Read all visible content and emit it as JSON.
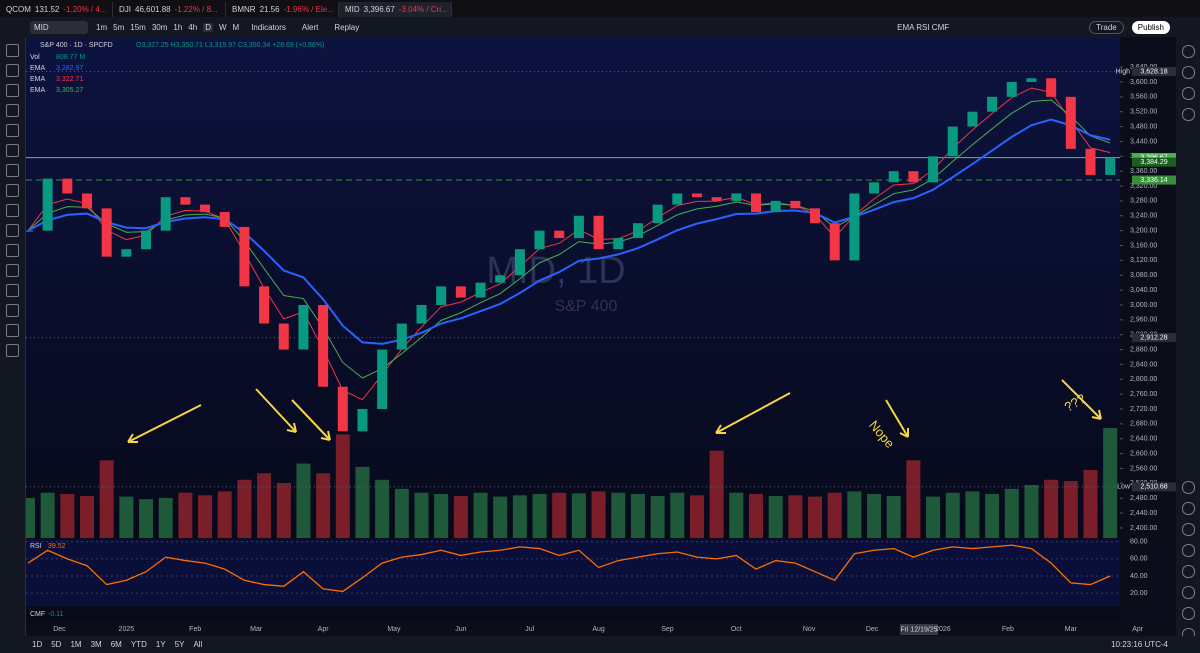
{
  "tabs": [
    {
      "symbol": "QCOM",
      "price": "131.52",
      "change": "-1.20% / 4..."
    },
    {
      "symbol": "DJI",
      "price": "46,601.88",
      "change": "-1.22% / 8..."
    },
    {
      "symbol": "BMNR",
      "price": "21.56",
      "change": "-1.96% / Ele..."
    },
    {
      "symbol": "MID",
      "price": "3,396.67",
      "change": "-3.04% / Cri..."
    }
  ],
  "toolbar": {
    "symbol": "MID",
    "intervals": [
      "1m",
      "5m",
      "15m",
      "30m",
      "1h",
      "4h",
      "D",
      "W",
      "M"
    ],
    "indicators": "Indicators",
    "alert": "Alert",
    "replay": "Replay",
    "layout": "EMA RSI CMF",
    "trade": "Trade",
    "publish": "Publish",
    "currency": "USD"
  },
  "legend": {
    "title": "S&P 400 · 1D · SPCFD",
    "ohlc": "O3,327.25 H3,350.71 L3,315.97 C3,350.34 +28.69 (+0.86%)",
    "vol_name": "Vol",
    "vol_value": "808.77 M",
    "emas": [
      {
        "name": "EMA",
        "value": "3,282.97"
      },
      {
        "name": "EMA",
        "value": "3,322.71"
      },
      {
        "name": "EMA",
        "value": "3,305.27"
      }
    ]
  },
  "watermark": {
    "title": "MID, 1D",
    "subtitle": "S&P 400"
  },
  "annotations": [
    "Nope",
    "???"
  ],
  "price_chart": {
    "x": [
      0,
      1,
      2,
      3,
      4,
      5,
      6,
      7,
      8,
      9,
      10,
      11,
      12,
      13,
      14,
      15,
      16,
      17,
      18,
      19,
      20,
      21,
      22,
      23,
      24,
      25,
      26,
      27,
      28,
      29,
      30,
      31,
      32,
      33,
      34,
      35,
      36,
      37,
      38,
      39,
      40,
      41,
      42,
      43,
      44,
      45,
      46,
      47,
      48,
      49,
      50,
      51,
      52,
      53,
      54,
      55
    ],
    "closes": [
      3200,
      3340,
      3300,
      3260,
      3130,
      3150,
      3200,
      3290,
      3270,
      3250,
      3210,
      3050,
      2950,
      2880,
      3000,
      2780,
      2660,
      2720,
      2880,
      2950,
      3000,
      3050,
      3020,
      3060,
      3080,
      3150,
      3200,
      3180,
      3240,
      3150,
      3180,
      3220,
      3270,
      3300,
      3290,
      3280,
      3300,
      3250,
      3280,
      3260,
      3220,
      3120,
      3300,
      3330,
      3360,
      3330,
      3400,
      3480,
      3520,
      3560,
      3600,
      3610,
      3560,
      3420,
      3350,
      3396.67
    ],
    "volumes": [
      620,
      700,
      680,
      650,
      1200,
      640,
      600,
      620,
      700,
      660,
      720,
      900,
      1000,
      850,
      1150,
      1000,
      1600,
      1100,
      900,
      760,
      700,
      680,
      650,
      700,
      640,
      660,
      680,
      700,
      690,
      720,
      700,
      680,
      650,
      700,
      660,
      1350,
      700,
      680,
      650,
      660,
      640,
      700,
      720,
      680,
      650,
      1200,
      640,
      700,
      720,
      680,
      760,
      820,
      900,
      880,
      1050,
      1700
    ],
    "xlim": [
      -0.1,
      55.5
    ],
    "xticks": [
      {
        "value": 1.6,
        "label": "Dec"
      },
      {
        "value": 5,
        "label": "2025"
      },
      {
        "value": 8.5,
        "label": "Feb"
      },
      {
        "value": 11.6,
        "label": "Mar"
      },
      {
        "value": 15,
        "label": "Apr"
      },
      {
        "value": 18.6,
        "label": "May"
      },
      {
        "value": 22,
        "label": "Jun"
      },
      {
        "value": 25.5,
        "label": "Jul"
      },
      {
        "value": 29,
        "label": "Aug"
      },
      {
        "value": 32.5,
        "label": "Sep"
      },
      {
        "value": 36,
        "label": "Oct"
      },
      {
        "value": 39.7,
        "label": "Nov"
      },
      {
        "value": 42.9,
        "label": "Dec"
      },
      {
        "value": 46.5,
        "label": "2026"
      },
      {
        "value": 49.8,
        "label": "Feb"
      },
      {
        "value": 53,
        "label": "Mar"
      },
      {
        "value": 56.4,
        "label": "Apr"
      }
    ],
    "ylim": [
      2373,
      3721
    ],
    "yticks": [
      {
        "value": 2400,
        "label": "2,400.00"
      },
      {
        "value": 2440,
        "label": "2,440.00"
      },
      {
        "value": 2480,
        "label": "2,480.00"
      },
      {
        "value": 2520,
        "label": "2,520.00"
      },
      {
        "value": 2560,
        "label": "2,560.00"
      },
      {
        "value": 2600,
        "label": "2,600.00"
      },
      {
        "value": 2640,
        "label": "2,640.00"
      },
      {
        "value": 2680,
        "label": "2,680.00"
      },
      {
        "value": 2720,
        "label": "2,720.00"
      },
      {
        "value": 2760,
        "label": "2,760.00"
      },
      {
        "value": 2800,
        "label": "2,800.00"
      },
      {
        "value": 2840,
        "label": "2,840.00"
      },
      {
        "value": 2880,
        "label": "2,880.00"
      },
      {
        "value": 2920,
        "label": "2,920.00"
      },
      {
        "value": 2960,
        "label": "2,960.00"
      },
      {
        "value": 3000,
        "label": "3,000.00"
      },
      {
        "value": 3040,
        "label": "3,040.00"
      },
      {
        "value": 3080,
        "label": "3,080.00"
      },
      {
        "value": 3120,
        "label": "3,120.00"
      },
      {
        "value": 3160,
        "label": "3,160.00"
      },
      {
        "value": 3200,
        "label": "3,200.00"
      },
      {
        "value": 3240,
        "label": "3,240.00"
      },
      {
        "value": 3280,
        "label": "3,280.00"
      },
      {
        "value": 3320,
        "label": "3,320.00"
      },
      {
        "value": 3360,
        "label": "3,360.00"
      },
      {
        "value": 3400,
        "label": "3,400.00"
      },
      {
        "value": 3440,
        "label": "3,440.00"
      },
      {
        "value": 3480,
        "label": "3,480.00"
      },
      {
        "value": 3520,
        "label": "3,520.00"
      },
      {
        "value": 3560,
        "label": "3,560.00"
      },
      {
        "value": 3600,
        "label": "3,600.00"
      },
      {
        "value": 3640,
        "label": "3,640.00"
      }
    ],
    "levels": [
      {
        "name": "High",
        "value": 3628.18,
        "label": "3,628.18",
        "color": "#2a2e39",
        "style": "dotted"
      },
      {
        "value": 3396.67,
        "label": "3,396.67",
        "color": "#4caf50",
        "style": "solid"
      },
      {
        "value": 3384.29,
        "label": "3,384.29",
        "color": "#1b5e20",
        "style": "none"
      },
      {
        "value": 3336.14,
        "label": "3,336.14",
        "color": "#388e3c",
        "style": "dashed"
      },
      {
        "value": 2912.28,
        "label": "2,912.28",
        "color": "#2a2e39",
        "style": "dotted"
      },
      {
        "name": "Low",
        "value": 2510.68,
        "label": "2,510.68",
        "color": "#2a2e39",
        "style": "dotted"
      }
    ]
  },
  "rsi": {
    "name": "RSI",
    "value": "39.52",
    "values": [
      55,
      70,
      60,
      52,
      30,
      35,
      45,
      62,
      58,
      55,
      48,
      35,
      30,
      28,
      45,
      25,
      22,
      38,
      55,
      62,
      65,
      70,
      64,
      68,
      70,
      74,
      72,
      64,
      70,
      50,
      58,
      62,
      66,
      68,
      62,
      60,
      64,
      48,
      58,
      55,
      45,
      35,
      66,
      70,
      72,
      62,
      70,
      74,
      72,
      74,
      76,
      72,
      55,
      32,
      30,
      40
    ],
    "ylim": [
      5,
      82
    ],
    "yticks": [
      {
        "value": 80,
        "label": "80.00"
      },
      {
        "value": 60,
        "label": "60.00"
      },
      {
        "value": 40,
        "label": "40.00"
      },
      {
        "value": 20,
        "label": "20.00"
      }
    ]
  },
  "cmf": {
    "name": "CMF",
    "value": "-0.11"
  },
  "crosshair_date": "Fri 12/19/25",
  "ranges": [
    "1D",
    "5D",
    "1M",
    "3M",
    "6M",
    "YTD",
    "1Y",
    "5Y",
    "All"
  ],
  "clock": "10:23:16 UTC-4"
}
